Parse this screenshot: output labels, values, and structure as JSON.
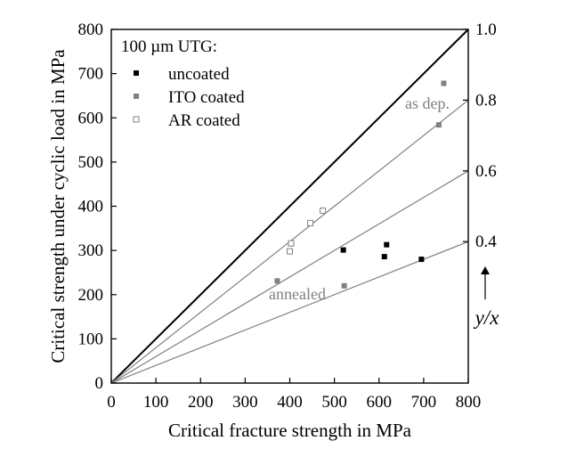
{
  "chart_data": {
    "type": "scatter",
    "title": "",
    "xlabel": "Critical fracture strength in MPa",
    "ylabel": "Critical strength under cyclic load in MPa",
    "xlim": [
      0,
      800
    ],
    "ylim": [
      0,
      800
    ],
    "x_ticks": [
      0,
      100,
      200,
      300,
      400,
      500,
      600,
      700,
      800
    ],
    "y_ticks": [
      0,
      100,
      200,
      300,
      400,
      500,
      600,
      700,
      800
    ],
    "grid": false,
    "legend": {
      "title": "100 µm UTG:",
      "position": "top-left",
      "entries": [
        "uncoated",
        "ITO coated",
        "AR coated"
      ]
    },
    "series": [
      {
        "name": "uncoated",
        "marker": "filled-square",
        "color": "#000000",
        "points": [
          [
            520,
            301
          ],
          [
            612,
            286
          ],
          [
            617,
            313
          ],
          [
            695,
            280
          ]
        ]
      },
      {
        "name": "ITO coated",
        "marker": "filled-square",
        "color": "#808080",
        "points": [
          [
            372,
            231
          ],
          [
            522,
            220
          ],
          [
            734,
            584
          ],
          [
            745,
            678
          ]
        ]
      },
      {
        "name": "AR coated",
        "marker": "open-square",
        "color": "#808080",
        "points": [
          [
            400,
            298
          ],
          [
            403,
            316
          ],
          [
            446,
            362
          ],
          [
            474,
            390
          ]
        ]
      }
    ],
    "ratio_axis": {
      "label": "y/x",
      "ticks": [
        0.4,
        0.6,
        0.8,
        1.0
      ],
      "tick_labels": [
        "0.4",
        "0.6",
        "0.8",
        "1.0"
      ],
      "lines": [
        {
          "ratio": 1.0,
          "color": "#000000"
        },
        {
          "ratio": 0.8,
          "color": "#808080"
        },
        {
          "ratio": 0.6,
          "color": "#808080"
        },
        {
          "ratio": 0.4,
          "color": "#808080"
        }
      ]
    },
    "annotations": [
      {
        "text": "as dep.",
        "near_ratio": 0.8
      },
      {
        "text": "annealed",
        "near_ratio": 0.4
      }
    ]
  }
}
